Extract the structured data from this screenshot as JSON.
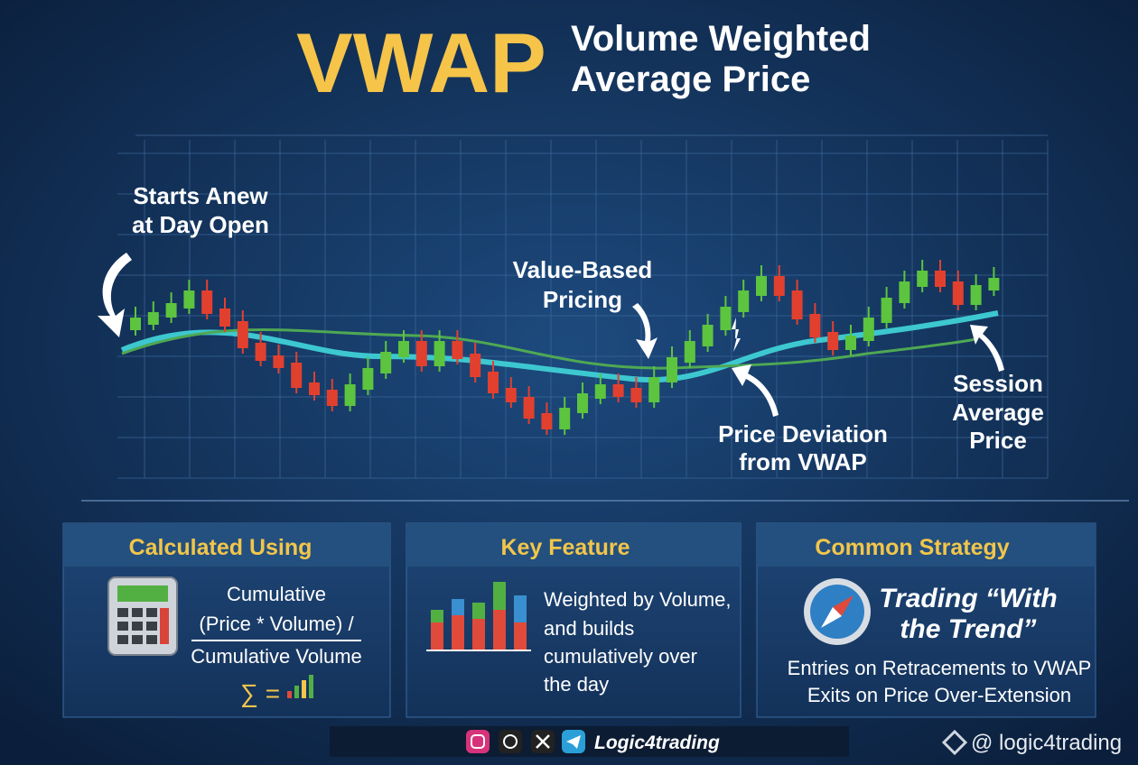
{
  "header": {
    "title": "VWAP",
    "subtitle_lines": [
      "Volume Weighted",
      "Average Price"
    ]
  },
  "annotations": [
    {
      "lines": [
        "Starts Anew",
        "at Day Open"
      ]
    },
    {
      "lines": [
        "Value-Based",
        "Pricing"
      ]
    },
    {
      "lines": [
        "Price Deviation",
        "from VWAP"
      ]
    },
    {
      "lines": [
        "Session",
        "Average",
        "Price"
      ]
    }
  ],
  "panels": [
    {
      "title": "Calculated Using",
      "lines": [
        "Cumulative",
        "(Price * Volume) /",
        "Cumulative Volume"
      ],
      "formula": "∑ ="
    },
    {
      "title": "Key Feature",
      "lines": [
        "Weighted by Volume,",
        "and builds",
        "cumulatively over",
        "the day"
      ]
    },
    {
      "title": "Common Strategy",
      "heading_lines": [
        "Trading “With",
        "the Trend”"
      ],
      "lines": [
        "Entries on Retracements to VWAP",
        "Exits on Price Over-Extension"
      ]
    }
  ],
  "footer": {
    "brand": "Logic4trading",
    "watermark": "@ logic4trading"
  }
}
